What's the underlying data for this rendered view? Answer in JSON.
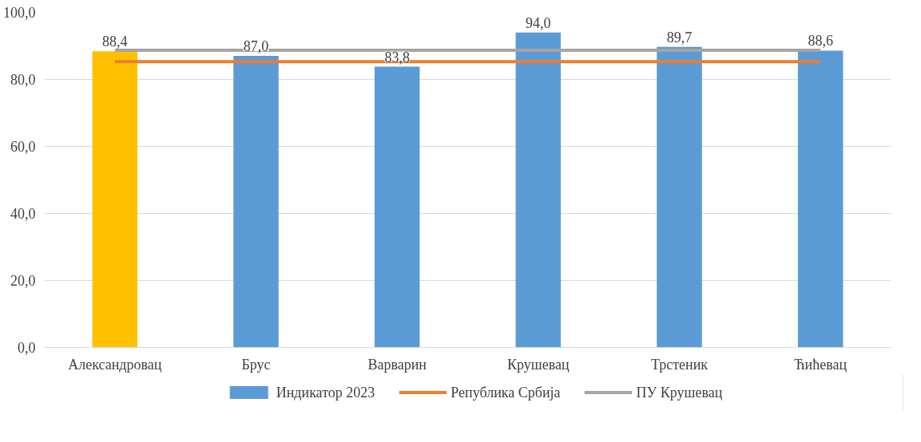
{
  "chart_data": {
    "type": "bar",
    "categories": [
      "Александровац",
      "Брус",
      "Варварин",
      "Крушевац",
      "Трстеник",
      "Ћићевац"
    ],
    "series": [
      {
        "name": "Индикатор 2023",
        "colors": [
          "#ffc000",
          "#5b9bd5",
          "#5b9bd5",
          "#5b9bd5",
          "#5b9bd5",
          "#5b9bd5"
        ],
        "color": "#5b9bd5",
        "values": [
          88.4,
          87.0,
          83.8,
          94.0,
          89.7,
          88.6
        ],
        "value_labels": [
          "88,4",
          "87,0",
          "83,8",
          "94,0",
          "89,7",
          "88,6"
        ]
      },
      {
        "name": "Република Србија",
        "type": "line",
        "color": "#ed7d31",
        "values": [
          85.3,
          85.3,
          85.3,
          85.3,
          85.3,
          85.3
        ]
      },
      {
        "name": "ПУ Крушевац",
        "type": "line",
        "color": "#a5a5a5",
        "values": [
          88.7,
          88.7,
          88.7,
          88.7,
          88.7,
          88.7
        ]
      }
    ],
    "ylim": [
      0,
      100
    ],
    "yticks": [
      {
        "value": 0,
        "label": "0,0"
      },
      {
        "value": 20,
        "label": "20,0"
      },
      {
        "value": 40,
        "label": "40,0"
      },
      {
        "value": 60,
        "label": "60,0"
      },
      {
        "value": 80,
        "label": "80,0"
      },
      {
        "value": 100,
        "label": "100,0"
      }
    ],
    "grid": "y",
    "legend": "bottom"
  }
}
